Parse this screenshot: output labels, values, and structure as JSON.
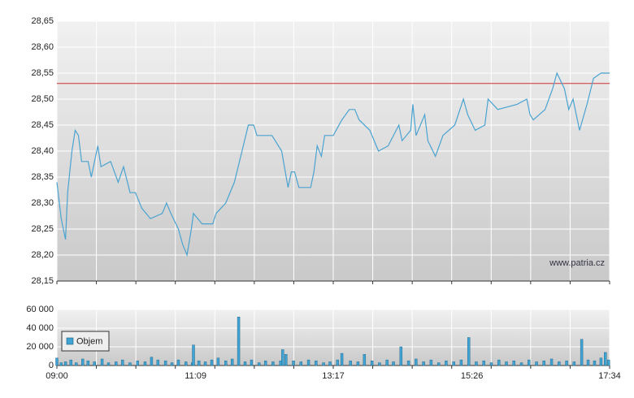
{
  "chart_data": [
    {
      "type": "line",
      "color": "#4aa3d0",
      "x": [
        "09:00",
        "09:04",
        "09:06",
        "09:08",
        "09:10",
        "09:14",
        "09:17",
        "09:20",
        "09:23",
        "09:29",
        "09:32",
        "09:38",
        "09:41",
        "09:50",
        "09:57",
        "10:02",
        "10:08",
        "10:13",
        "10:19",
        "10:27",
        "10:38",
        "10:42",
        "10:46",
        "10:53",
        "10:57",
        "11:01",
        "11:05",
        "11:07",
        "11:15",
        "11:25",
        "11:28",
        "11:37",
        "11:45",
        "11:51",
        "11:58",
        "12:03",
        "12:06",
        "12:20",
        "12:29",
        "12:35",
        "12:38",
        "12:41",
        "12:45",
        "12:56",
        "12:59",
        "13:02",
        "13:06",
        "13:09",
        "13:17",
        "13:25",
        "13:32",
        "13:37",
        "13:41",
        "13:51",
        "13:59",
        "14:08",
        "14:18",
        "14:21",
        "14:29",
        "14:31",
        "14:34",
        "14:42",
        "14:45",
        "14:52",
        "14:59",
        "15:10",
        "15:18",
        "15:22",
        "15:29",
        "15:38",
        "15:41",
        "15:50",
        "16:08",
        "16:17",
        "16:20",
        "16:23",
        "16:34",
        "16:41",
        "16:45",
        "16:52",
        "16:56",
        "17:00",
        "17:06",
        "17:13",
        "17:19",
        "17:26",
        "17:34"
      ],
      "values": [
        28.34,
        28.27,
        28.25,
        28.23,
        28.32,
        28.4,
        28.44,
        28.43,
        28.38,
        28.38,
        28.35,
        28.41,
        28.37,
        28.38,
        28.34,
        28.37,
        28.32,
        28.32,
        28.29,
        28.27,
        28.28,
        28.3,
        28.28,
        28.25,
        28.22,
        28.2,
        28.25,
        28.28,
        28.26,
        28.26,
        28.28,
        28.3,
        28.34,
        28.39,
        28.45,
        28.45,
        28.43,
        28.43,
        28.4,
        28.33,
        28.36,
        28.36,
        28.33,
        28.33,
        28.36,
        28.41,
        28.39,
        28.43,
        28.43,
        28.46,
        28.48,
        28.48,
        28.46,
        28.44,
        28.4,
        28.41,
        28.45,
        28.42,
        28.44,
        28.49,
        28.43,
        28.47,
        28.42,
        28.39,
        28.43,
        28.45,
        28.5,
        28.47,
        28.44,
        28.45,
        28.5,
        28.48,
        28.49,
        28.5,
        28.47,
        28.46,
        28.48,
        28.52,
        28.55,
        28.52,
        28.48,
        28.5,
        28.44,
        28.49,
        28.54,
        28.55,
        28.55
      ],
      "xlim": [
        "09:00",
        "17:34"
      ],
      "ylim": [
        28.15,
        28.65
      ],
      "yticks": [
        {
          "value": 28.15,
          "label": "28,15"
        },
        {
          "value": 28.2,
          "label": "28,20"
        },
        {
          "value": 28.25,
          "label": "28,25"
        },
        {
          "value": 28.3,
          "label": "28,30"
        },
        {
          "value": 28.35,
          "label": "28,35"
        },
        {
          "value": 28.4,
          "label": "28,40"
        },
        {
          "value": 28.45,
          "label": "28,45"
        },
        {
          "value": 28.5,
          "label": "28,50"
        },
        {
          "value": 28.55,
          "label": "28,55"
        },
        {
          "value": 28.6,
          "label": "28,60"
        },
        {
          "value": 28.65,
          "label": "28,65"
        }
      ],
      "reference_line": {
        "value": 28.53,
        "color": "#cc3333"
      },
      "grid": true,
      "annotation": "www.patria.cz"
    },
    {
      "type": "bar",
      "x": [
        "09:00",
        "09:04",
        "09:08",
        "09:13",
        "09:18",
        "09:24",
        "09:29",
        "09:35",
        "09:42",
        "09:48",
        "09:55",
        "10:01",
        "10:08",
        "10:15",
        "10:22",
        "10:28",
        "10:34",
        "10:41",
        "10:47",
        "10:53",
        "11:00",
        "11:06",
        "11:07",
        "11:12",
        "11:18",
        "11:24",
        "11:30",
        "11:37",
        "11:43",
        "11:49",
        "11:55",
        "12:01",
        "12:08",
        "12:14",
        "12:21",
        "12:28",
        "12:30",
        "12:33",
        "12:40",
        "12:47",
        "12:54",
        "13:01",
        "13:08",
        "13:14",
        "13:21",
        "13:25",
        "13:33",
        "13:40",
        "13:46",
        "13:53",
        "14:00",
        "14:07",
        "14:13",
        "14:20",
        "14:27",
        "14:34",
        "14:41",
        "14:48",
        "14:55",
        "15:02",
        "15:09",
        "15:16",
        "15:23",
        "15:30",
        "15:37",
        "15:44",
        "15:51",
        "15:58",
        "16:05",
        "16:12",
        "16:19",
        "16:26",
        "16:33",
        "16:40",
        "16:47",
        "16:54",
        "17:01",
        "17:08",
        "17:14",
        "17:20",
        "17:26",
        "17:30",
        "17:33"
      ],
      "series": [
        {
          "name": "Objem",
          "color": "#3fa3d3",
          "values": [
            8000,
            3000,
            4000,
            6000,
            3000,
            7000,
            5000,
            4000,
            7000,
            3000,
            4000,
            6000,
            3000,
            5000,
            4000,
            9000,
            6000,
            5000,
            3000,
            6000,
            4000,
            3000,
            22000,
            5000,
            4000,
            6000,
            8000,
            5000,
            7000,
            52000,
            4000,
            6000,
            3000,
            5000,
            4000,
            5000,
            17000,
            12000,
            5000,
            4000,
            6000,
            5000,
            3000,
            4000,
            6000,
            13000,
            5000,
            4000,
            12000,
            5000,
            3000,
            6000,
            4000,
            20000,
            5000,
            7000,
            4000,
            6000,
            3000,
            5000,
            4000,
            6000,
            30000,
            4000,
            5000,
            3000,
            6000,
            4000,
            5000,
            3000,
            6000,
            4000,
            5000,
            7000,
            4000,
            5000,
            4000,
            28000,
            6000,
            5000,
            8000,
            14000,
            6000
          ]
        }
      ],
      "xlim": [
        "09:00",
        "17:34"
      ],
      "xticks": [
        "09:00",
        "11:09",
        "13:17",
        "15:26",
        "17:34"
      ],
      "ylim": [
        0,
        60000
      ],
      "yticks": [
        0,
        {
          "value": 20000,
          "label": "20 000"
        },
        {
          "value": 40000,
          "label": "40 000"
        },
        {
          "value": 60000,
          "label": "60 000"
        }
      ],
      "grid": true,
      "legend": "upper-left"
    }
  ]
}
